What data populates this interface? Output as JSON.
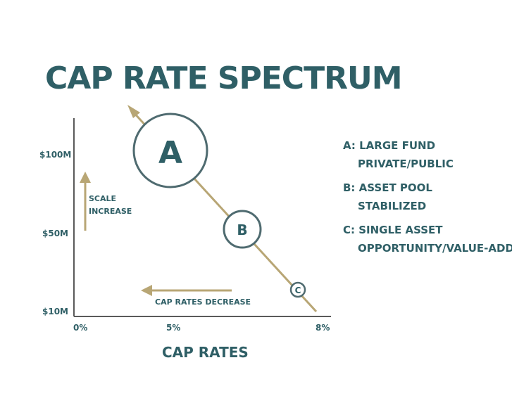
{
  "title": "CAP RATE SPECTRUM",
  "y_ticks": [
    "$100M",
    "$50M",
    "$10M"
  ],
  "x_ticks": [
    "0%",
    "5%",
    "8%"
  ],
  "x_axis_label": "CAP RATES",
  "scale_arrow_label": [
    "SCALE",
    "INCREASE"
  ],
  "cap_arrow_label": "CAP RATES DECREASE",
  "bubbles": [
    {
      "id": "A",
      "label": "A"
    },
    {
      "id": "B",
      "label": "B"
    },
    {
      "id": "C",
      "label": "C"
    }
  ],
  "legend": [
    {
      "line1": "A: LARGE FUND",
      "line2": "PRIVATE/PUBLIC"
    },
    {
      "line1": "B: ASSET POOL",
      "line2": "STABILIZED"
    },
    {
      "line1": "C: SINGLE ASSET",
      "line2": "OPPORTUNITY/VALUE-ADD"
    }
  ],
  "colors": {
    "primary": "#2f5f66",
    "accent": "#b8a675",
    "circle_stroke": "#4f6b70",
    "axis": "#5a5a5a"
  }
}
